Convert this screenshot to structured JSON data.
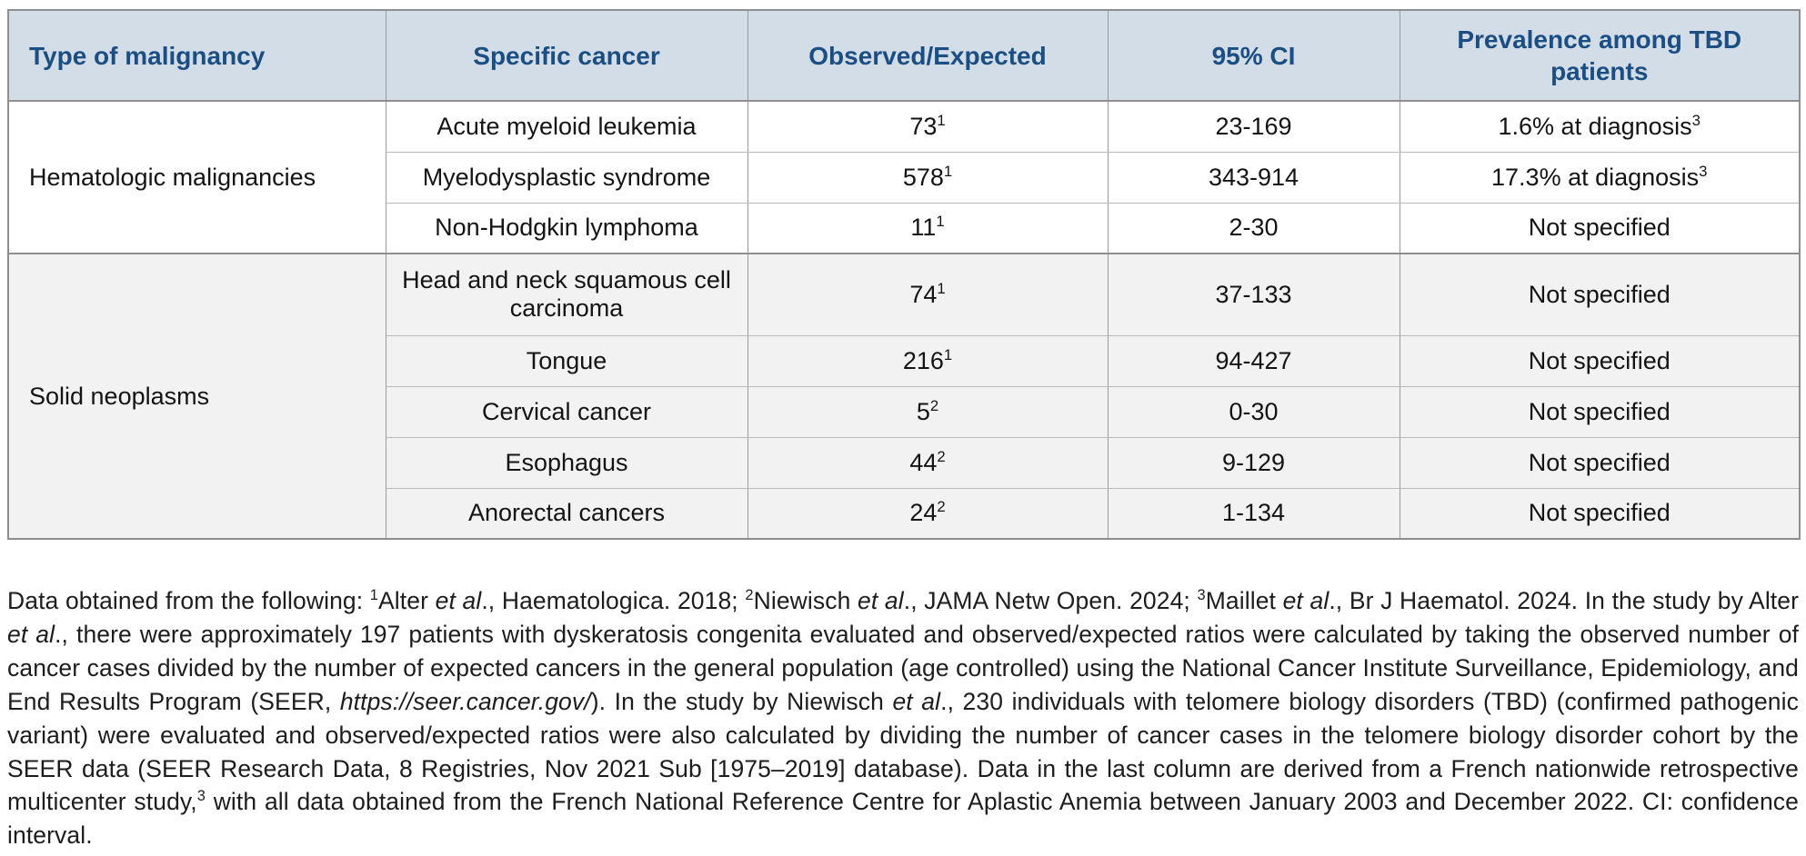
{
  "colors": {
    "header_bg": "#d3dde7",
    "header_text": "#1b4e82",
    "section_hematologic_bg": "#ffffff",
    "section_solid_bg": "#f2f2f2",
    "border_major": "#8f8f8f",
    "border_minor": "#b9b9b9",
    "body_text": "#141414"
  },
  "table": {
    "headers": [
      "Type of malignancy",
      "Specific cancer",
      "Observed/Expected",
      "95% CI",
      "Prevalence among TBD patients"
    ],
    "sections": [
      {
        "type_label": "Hematologic malignancies",
        "rows": [
          {
            "cancer": "Acute myeloid leukemia",
            "oe": "73",
            "oe_sup": "1",
            "ci": "23-169",
            "prevalence": "1.6% at diagnosis",
            "prev_sup": "3"
          },
          {
            "cancer": "Myelodysplastic syndrome",
            "oe": "578",
            "oe_sup": "1",
            "ci": "343-914",
            "prevalence": "17.3% at diagnosis",
            "prev_sup": "3"
          },
          {
            "cancer": "Non-Hodgkin lymphoma",
            "oe": "11",
            "oe_sup": "1",
            "ci": "2-30",
            "prevalence": "Not specified",
            "prev_sup": ""
          }
        ]
      },
      {
        "type_label": "Solid neoplasms",
        "rows": [
          {
            "cancer": "Head and neck squamous cell carcinoma",
            "oe": "74",
            "oe_sup": "1",
            "ci": "37-133",
            "prevalence": "Not specified",
            "prev_sup": "",
            "tall": true
          },
          {
            "cancer": "Tongue",
            "oe": "216",
            "oe_sup": "1",
            "ci": "94-427",
            "prevalence": "Not specified",
            "prev_sup": ""
          },
          {
            "cancer": "Cervical cancer",
            "oe": "5",
            "oe_sup": "2",
            "ci": "0-30",
            "prevalence": "Not specified",
            "prev_sup": ""
          },
          {
            "cancer": "Esophagus",
            "oe": "44",
            "oe_sup": "2",
            "ci": "9-129",
            "prevalence": "Not specified",
            "prev_sup": ""
          },
          {
            "cancer": "Anorectal cancers",
            "oe": "24",
            "oe_sup": "2",
            "ci": "1-134",
            "prevalence": "Not specified",
            "prev_sup": ""
          }
        ]
      }
    ]
  },
  "footnote": {
    "segments": [
      {
        "t": "Data obtained from the following: "
      },
      {
        "t": "1",
        "s": true
      },
      {
        "t": "Alter "
      },
      {
        "t": "et al",
        "i": true
      },
      {
        "t": "., Haematologica. 2018; "
      },
      {
        "t": "2",
        "s": true
      },
      {
        "t": "Niewisch "
      },
      {
        "t": "et al",
        "i": true
      },
      {
        "t": "., JAMA Netw Open. 2024; "
      },
      {
        "t": "3",
        "s": true
      },
      {
        "t": "Maillet "
      },
      {
        "t": "et al",
        "i": true
      },
      {
        "t": "., Br J Haematol. 2024. In the study by Alter "
      },
      {
        "t": "et al",
        "i": true
      },
      {
        "t": "., there were approximately 197 patients with dyskeratosis congenita evaluated and observed/expected ratios were calculated by taking the observed number of cancer cases divided by the number of expected cancers in the general population (age controlled) using the National Cancer Institute Surveillance, Epidemiology, and End Results Program (SEER, "
      },
      {
        "t": "https://seer.cancer.gov/",
        "i": true
      },
      {
        "t": "). In the study by Niewisch "
      },
      {
        "t": "et al",
        "i": true
      },
      {
        "t": "., 230 individuals with telomere biology disorders (TBD) (confirmed pathogenic variant) were evaluated and observed/expected ratios were also calculated by dividing the number of cancer cases in the telomere biology disorder cohort by the SEER data (SEER Research Data, 8 Registries, Nov 2021 Sub [1975–2019] database). Data in the last column are derived from a French nationwide retrospective multicenter study,"
      },
      {
        "t": "3",
        "s": true
      },
      {
        "t": " with all data obtained from the French National Reference Centre for Aplastic Anemia between January 2003 and December 2022. CI: confidence interval."
      }
    ]
  }
}
